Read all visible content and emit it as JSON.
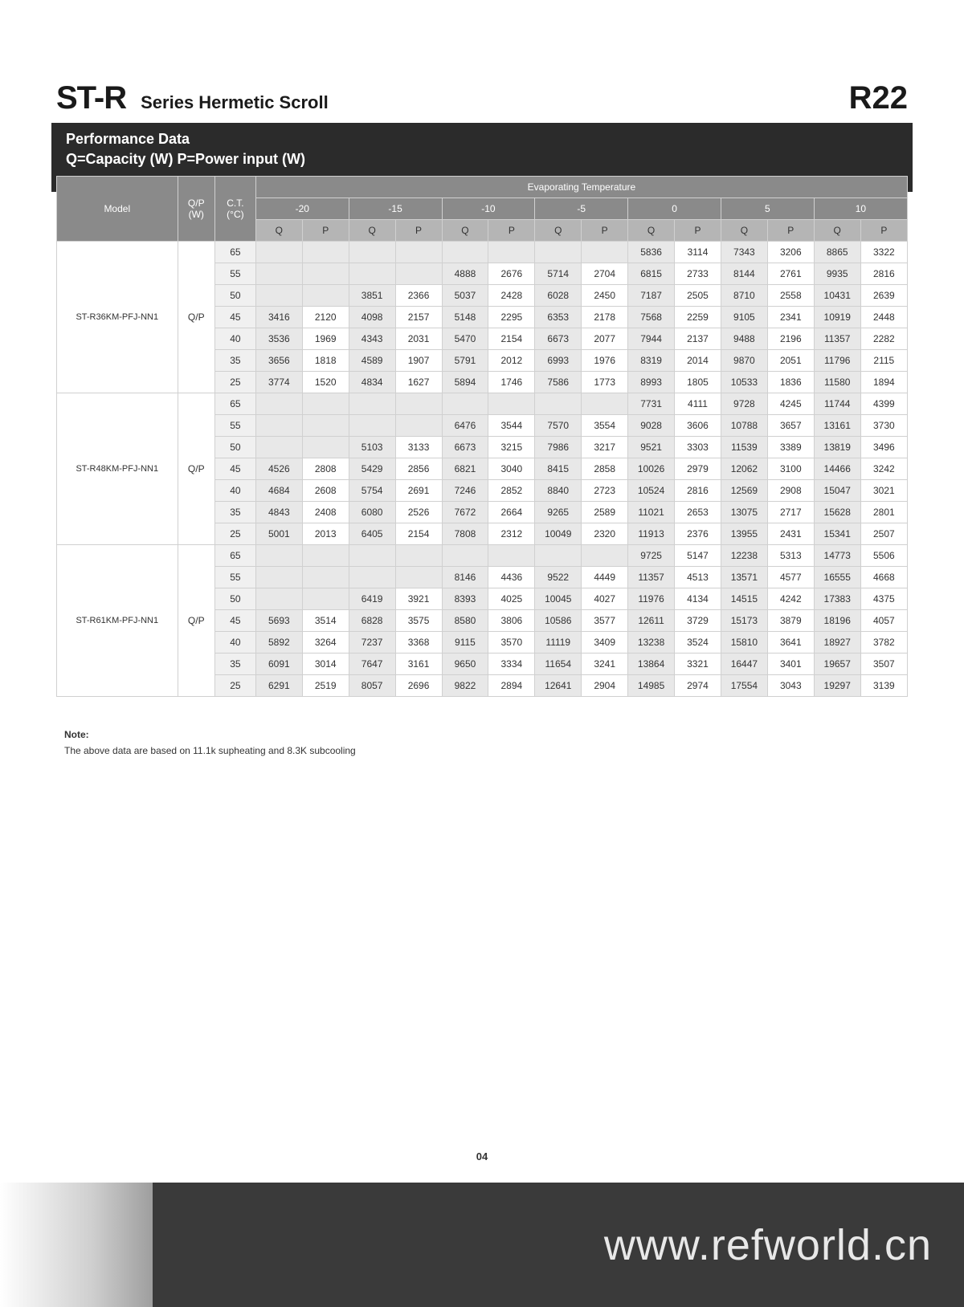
{
  "header": {
    "title_main": "ST-R",
    "title_sub": "Series Hermetic Scroll",
    "title_right": "R22"
  },
  "section": {
    "h1": "Performance Data",
    "h2": "Q=Capacity (W) P=Power input (W)"
  },
  "table": {
    "col_model": "Model",
    "col_qp": "Q/P (W)",
    "col_ct": "C.T. (°C)",
    "evap_header": "Evaporating Temperature",
    "temps": [
      "-20",
      "-15",
      "-10",
      "-5",
      "0",
      "5",
      "10"
    ],
    "sub_qp": [
      "Q",
      "P"
    ],
    "ct_values": [
      "65",
      "55",
      "50",
      "45",
      "40",
      "35",
      "25"
    ],
    "models": [
      {
        "name": "ST-R36KM-PFJ-NN1",
        "qp": "Q/P",
        "rows": [
          [
            "",
            "",
            "",
            "",
            "",
            "",
            "",
            "",
            "5836",
            "3114",
            "7343",
            "3206",
            "8865",
            "3322"
          ],
          [
            "",
            "",
            "",
            "",
            "4888",
            "2676",
            "5714",
            "2704",
            "6815",
            "2733",
            "8144",
            "2761",
            "9935",
            "2816"
          ],
          [
            "",
            "",
            "3851",
            "2366",
            "5037",
            "2428",
            "6028",
            "2450",
            "7187",
            "2505",
            "8710",
            "2558",
            "10431",
            "2639"
          ],
          [
            "3416",
            "2120",
            "4098",
            "2157",
            "5148",
            "2295",
            "6353",
            "2178",
            "7568",
            "2259",
            "9105",
            "2341",
            "10919",
            "2448"
          ],
          [
            "3536",
            "1969",
            "4343",
            "2031",
            "5470",
            "2154",
            "6673",
            "2077",
            "7944",
            "2137",
            "9488",
            "2196",
            "11357",
            "2282"
          ],
          [
            "3656",
            "1818",
            "4589",
            "1907",
            "5791",
            "2012",
            "6993",
            "1976",
            "8319",
            "2014",
            "9870",
            "2051",
            "11796",
            "2115"
          ],
          [
            "3774",
            "1520",
            "4834",
            "1627",
            "5894",
            "1746",
            "7586",
            "1773",
            "8993",
            "1805",
            "10533",
            "1836",
            "11580",
            "1894"
          ]
        ]
      },
      {
        "name": "ST-R48KM-PFJ-NN1",
        "qp": "Q/P",
        "rows": [
          [
            "",
            "",
            "",
            "",
            "",
            "",
            "",
            "",
            "7731",
            "4111",
            "9728",
            "4245",
            "11744",
            "4399"
          ],
          [
            "",
            "",
            "",
            "",
            "6476",
            "3544",
            "7570",
            "3554",
            "9028",
            "3606",
            "10788",
            "3657",
            "13161",
            "3730"
          ],
          [
            "",
            "",
            "5103",
            "3133",
            "6673",
            "3215",
            "7986",
            "3217",
            "9521",
            "3303",
            "11539",
            "3389",
            "13819",
            "3496"
          ],
          [
            "4526",
            "2808",
            "5429",
            "2856",
            "6821",
            "3040",
            "8415",
            "2858",
            "10026",
            "2979",
            "12062",
            "3100",
            "14466",
            "3242"
          ],
          [
            "4684",
            "2608",
            "5754",
            "2691",
            "7246",
            "2852",
            "8840",
            "2723",
            "10524",
            "2816",
            "12569",
            "2908",
            "15047",
            "3021"
          ],
          [
            "4843",
            "2408",
            "6080",
            "2526",
            "7672",
            "2664",
            "9265",
            "2589",
            "11021",
            "2653",
            "13075",
            "2717",
            "15628",
            "2801"
          ],
          [
            "5001",
            "2013",
            "6405",
            "2154",
            "7808",
            "2312",
            "10049",
            "2320",
            "11913",
            "2376",
            "13955",
            "2431",
            "15341",
            "2507"
          ]
        ]
      },
      {
        "name": "ST-R61KM-PFJ-NN1",
        "qp": "Q/P",
        "rows": [
          [
            "",
            "",
            "",
            "",
            "",
            "",
            "",
            "",
            "9725",
            "5147",
            "12238",
            "5313",
            "14773",
            "5506"
          ],
          [
            "",
            "",
            "",
            "",
            "8146",
            "4436",
            "9522",
            "4449",
            "11357",
            "4513",
            "13571",
            "4577",
            "16555",
            "4668"
          ],
          [
            "",
            "",
            "6419",
            "3921",
            "8393",
            "4025",
            "10045",
            "4027",
            "11976",
            "4134",
            "14515",
            "4242",
            "17383",
            "4375"
          ],
          [
            "5693",
            "3514",
            "6828",
            "3575",
            "8580",
            "3806",
            "10586",
            "3577",
            "12611",
            "3729",
            "15173",
            "3879",
            "18196",
            "4057"
          ],
          [
            "5892",
            "3264",
            "7237",
            "3368",
            "9115",
            "3570",
            "11119",
            "3409",
            "13238",
            "3524",
            "15810",
            "3641",
            "18927",
            "3782"
          ],
          [
            "6091",
            "3014",
            "7647",
            "3161",
            "9650",
            "3334",
            "11654",
            "3241",
            "13864",
            "3321",
            "16447",
            "3401",
            "19657",
            "3507"
          ],
          [
            "6291",
            "2519",
            "8057",
            "2696",
            "9822",
            "2894",
            "12641",
            "2904",
            "14985",
            "2974",
            "17554",
            "3043",
            "19297",
            "3139"
          ]
        ]
      }
    ]
  },
  "note": {
    "title": "Note:",
    "text": "The above data are based on 11.1k supheating and 8.3K subcooling"
  },
  "page_number": "04",
  "footer_url": "www.refworld.cn",
  "colors": {
    "header_dark": "#2b2b2b",
    "thead_dark": "#8a8a8a",
    "thead_light": "#b5b5b5",
    "row_alt": "#e8e8e8",
    "border": "#d0d0d0",
    "footer": "#3a3a3a"
  }
}
